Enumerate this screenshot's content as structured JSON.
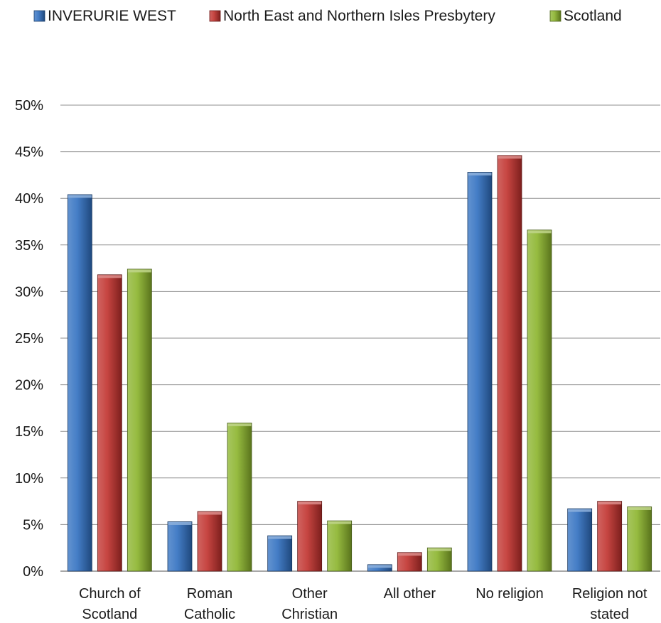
{
  "chart_data": {
    "type": "bar",
    "categories": [
      [
        "Church of",
        "Scotland"
      ],
      [
        "Roman",
        "Catholic"
      ],
      [
        "Other",
        "Christian"
      ],
      [
        "All other"
      ],
      [
        "No religion"
      ],
      [
        "Religion not",
        "stated"
      ]
    ],
    "series": [
      {
        "name": "INVERURIE WEST",
        "color": "#2f6fc0",
        "values": [
          40.4,
          5.3,
          3.8,
          0.7,
          42.8,
          6.7
        ]
      },
      {
        "name": "North East and Northern Isles Presbytery",
        "color": "#c0302c",
        "values": [
          31.8,
          6.4,
          7.5,
          2.0,
          44.6,
          7.5
        ]
      },
      {
        "name": "Scotland",
        "color": "#8ab32b",
        "values": [
          32.4,
          15.9,
          5.4,
          2.5,
          36.6,
          6.9
        ]
      }
    ],
    "yticks": [
      "0%",
      "5%",
      "10%",
      "15%",
      "20%",
      "25%",
      "30%",
      "35%",
      "40%",
      "45%",
      "50%"
    ],
    "ylim": [
      0,
      50
    ],
    "grid": true,
    "legend_position": "top"
  }
}
